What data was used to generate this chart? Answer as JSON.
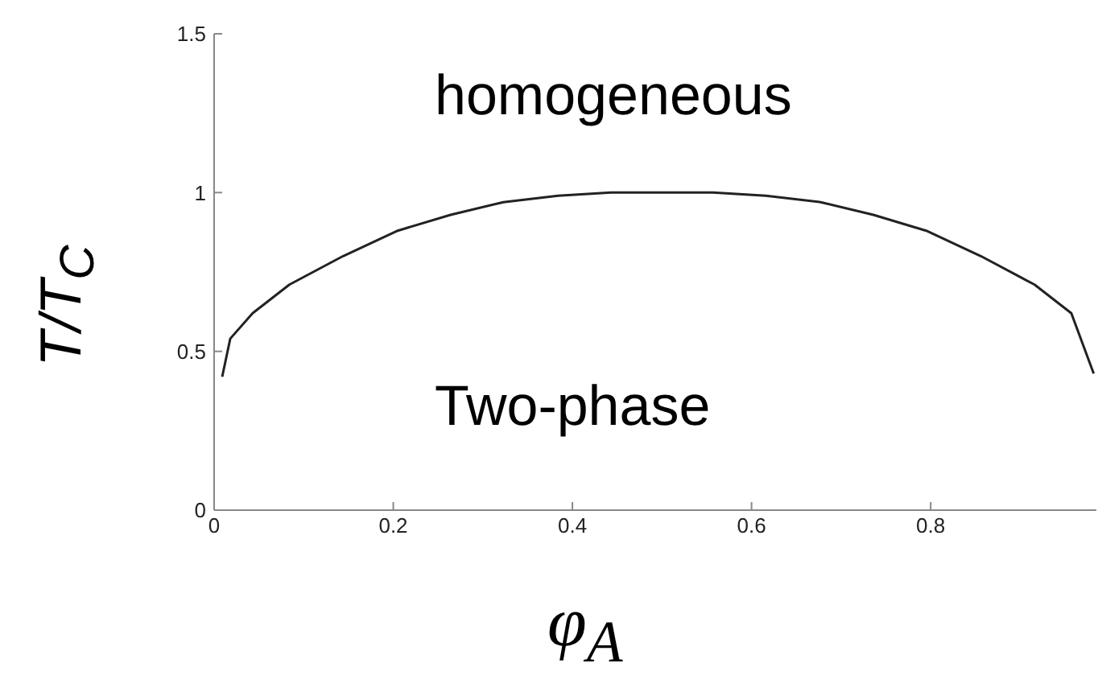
{
  "chart_data": {
    "type": "line",
    "xlabel": "φ$_{A}$",
    "ylabel": "T/T$_{C}$",
    "annotations": [
      "homogeneous",
      "Two-phase"
    ],
    "x": [
      0.009,
      0.018,
      0.043,
      0.084,
      0.144,
      0.205,
      0.264,
      0.323,
      0.384,
      0.443,
      0.5,
      0.557,
      0.616,
      0.677,
      0.736,
      0.795,
      0.856,
      0.916,
      0.957,
      0.982
    ],
    "series": [
      {
        "color": "#222222",
        "values": [
          0.42,
          0.54,
          0.62,
          0.71,
          0.8,
          0.88,
          0.93,
          0.97,
          0.99,
          1.0,
          1.0,
          1.0,
          0.99,
          0.97,
          0.93,
          0.88,
          0.8,
          0.71,
          0.62,
          0.43
        ]
      }
    ],
    "xlim": [
      0,
      0.985
    ],
    "xticks": [
      0,
      0.2,
      0.4,
      0.6,
      0.8
    ],
    "ylim": [
      0,
      1.5
    ],
    "yticks": [
      0,
      0.5,
      1,
      1.5
    ],
    "grid": false,
    "legend": false,
    "marker": "none",
    "line_style": "solid"
  }
}
